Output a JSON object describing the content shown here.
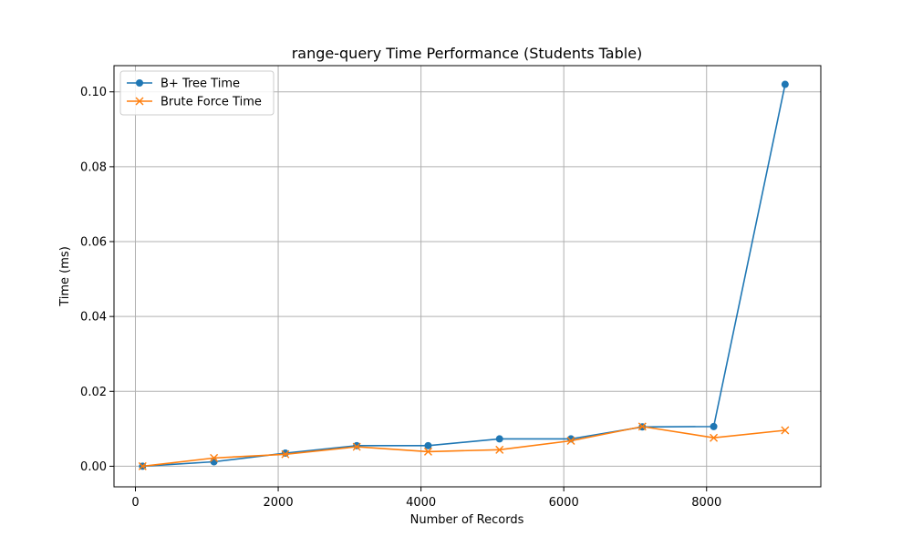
{
  "chart_data": {
    "type": "line",
    "title": "range-query Time Performance (Students Table)",
    "xlabel": "Number of Records",
    "ylabel": "Time (ms)",
    "xlim": [
      -300,
      9600
    ],
    "ylim": [
      -0.0055,
      0.107
    ],
    "xticks": [
      0,
      2000,
      4000,
      6000,
      8000
    ],
    "xtick_labels": [
      "0",
      "2000",
      "4000",
      "6000",
      "8000"
    ],
    "yticks": [
      0.0,
      0.02,
      0.04,
      0.06,
      0.08,
      0.1
    ],
    "ytick_labels": [
      "0.00",
      "0.02",
      "0.04",
      "0.06",
      "0.08",
      "0.10"
    ],
    "grid": true,
    "legend_position": "top-left",
    "x": [
      100,
      1100,
      2100,
      3100,
      4100,
      5100,
      6100,
      7100,
      8100,
      9100
    ],
    "series": [
      {
        "name": "B+ Tree Time",
        "color": "#1f77b4",
        "marker": "circle",
        "values": [
          0.0,
          0.0012,
          0.0035,
          0.0055,
          0.0055,
          0.0073,
          0.0073,
          0.0105,
          0.0106,
          0.102
        ]
      },
      {
        "name": "Brute Force Time",
        "color": "#ff7f0e",
        "marker": "x",
        "values": [
          0.0,
          0.0022,
          0.0032,
          0.0052,
          0.0039,
          0.0044,
          0.0068,
          0.0106,
          0.0076,
          0.0096
        ]
      }
    ]
  }
}
